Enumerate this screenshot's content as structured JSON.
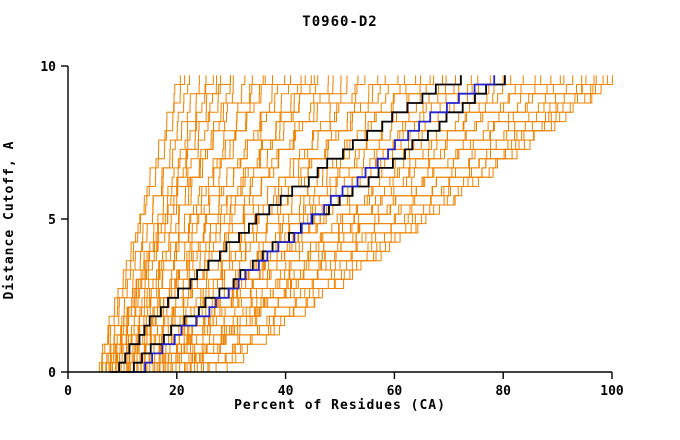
{
  "chart_data": {
    "type": "line",
    "title": "T0960-D2",
    "xlabel": "Percent of Residues (CA)",
    "ylabel": "Distance Cutoff, A",
    "xlim": [
      0,
      100
    ],
    "ylim": [
      0,
      10
    ],
    "x_ticks": [
      0,
      20,
      40,
      60,
      80,
      100
    ],
    "x_tick_labels": [
      "0",
      "20",
      "40",
      "60",
      "80",
      "100"
    ],
    "y_ticks": [
      0,
      5,
      10
    ],
    "y_tick_labels": [
      "0",
      "5",
      "10"
    ],
    "curve_top_y": 9.7,
    "grid": false,
    "legend": "none",
    "colors": {
      "ensemble_orange": "#ef8200",
      "highlight_black": "#000000",
      "highlight_blue": "#2323cc",
      "axis": "#000000",
      "background": "#ffffff"
    },
    "highlight_series": [
      {
        "name": "black-model-1",
        "color": "#000000",
        "points": [
          [
            8,
            0
          ],
          [
            10,
            0.5
          ],
          [
            12,
            1
          ],
          [
            14,
            1.5
          ],
          [
            16,
            2
          ],
          [
            19,
            2.5
          ],
          [
            22,
            3
          ],
          [
            25,
            3.5
          ],
          [
            28,
            4
          ],
          [
            31,
            4.5
          ],
          [
            34,
            5
          ],
          [
            37,
            5.5
          ],
          [
            41,
            6
          ],
          [
            45,
            6.5
          ],
          [
            48,
            7
          ],
          [
            52,
            7.5
          ],
          [
            56,
            8
          ],
          [
            60,
            8.5
          ],
          [
            64,
            9
          ],
          [
            69,
            9.5
          ],
          [
            72,
            9.7
          ]
        ]
      },
      {
        "name": "black-model-2",
        "color": "#000000",
        "points": [
          [
            10,
            0
          ],
          [
            13,
            0.5
          ],
          [
            16,
            1
          ],
          [
            19,
            1.5
          ],
          [
            23,
            2
          ],
          [
            26,
            2.5
          ],
          [
            30,
            3
          ],
          [
            33,
            3.5
          ],
          [
            36,
            4
          ],
          [
            40,
            4.5
          ],
          [
            44,
            5
          ],
          [
            48,
            5.5
          ],
          [
            52,
            6
          ],
          [
            56,
            6.5
          ],
          [
            60,
            7
          ],
          [
            63,
            7.5
          ],
          [
            67,
            8
          ],
          [
            70,
            8.5
          ],
          [
            74,
            9
          ],
          [
            78,
            9.5
          ],
          [
            80,
            9.7
          ]
        ]
      },
      {
        "name": "blue-model",
        "color": "#2323cc",
        "points": [
          [
            12,
            0
          ],
          [
            15,
            0.5
          ],
          [
            18,
            1
          ],
          [
            21,
            1.5
          ],
          [
            25,
            2
          ],
          [
            28,
            2.5
          ],
          [
            31,
            3
          ],
          [
            34,
            3.5
          ],
          [
            37,
            4
          ],
          [
            41,
            4.5
          ],
          [
            44,
            5
          ],
          [
            47,
            5.5
          ],
          [
            50,
            6
          ],
          [
            54,
            6.5
          ],
          [
            57,
            7
          ],
          [
            60,
            7.5
          ],
          [
            63,
            8
          ],
          [
            67,
            8.5
          ],
          [
            71,
            9
          ],
          [
            76,
            9.5
          ],
          [
            78,
            9.7
          ]
        ]
      }
    ],
    "ensemble_series": [
      {
        "x0": 5,
        "x1": 20,
        "p": 1.0
      },
      {
        "x0": 6,
        "x1": 22,
        "p": 0.92
      },
      {
        "x0": 5.5,
        "x1": 24,
        "p": 1.1
      },
      {
        "x0": 7,
        "x1": 25,
        "p": 1.0
      },
      {
        "x0": 6,
        "x1": 27,
        "p": 0.95
      },
      {
        "x0": 8,
        "x1": 28,
        "p": 1.15
      },
      {
        "x0": 7,
        "x1": 30,
        "p": 0.9
      },
      {
        "x0": 9,
        "x1": 31,
        "p": 1.05
      },
      {
        "x0": 6.5,
        "x1": 33,
        "p": 1.2
      },
      {
        "x0": 8,
        "x1": 34,
        "p": 0.95
      },
      {
        "x0": 10,
        "x1": 36,
        "p": 1.0
      },
      {
        "x0": 7,
        "x1": 37,
        "p": 1.1
      },
      {
        "x0": 9,
        "x1": 39,
        "p": 0.9
      },
      {
        "x0": 11,
        "x1": 40,
        "p": 1.05
      },
      {
        "x0": 8,
        "x1": 42,
        "p": 1.18
      },
      {
        "x0": 10,
        "x1": 43,
        "p": 0.92
      },
      {
        "x0": 12,
        "x1": 45,
        "p": 1.0
      },
      {
        "x0": 9,
        "x1": 46,
        "p": 1.12
      },
      {
        "x0": 11,
        "x1": 48,
        "p": 0.95
      },
      {
        "x0": 13,
        "x1": 49,
        "p": 1.05
      },
      {
        "x0": 10,
        "x1": 51,
        "p": 1.2
      },
      {
        "x0": 12,
        "x1": 52,
        "p": 0.9
      },
      {
        "x0": 14,
        "x1": 54,
        "p": 1.0
      },
      {
        "x0": 11,
        "x1": 55,
        "p": 1.1
      },
      {
        "x0": 13,
        "x1": 57,
        "p": 0.95
      },
      {
        "x0": 15,
        "x1": 58,
        "p": 1.04
      },
      {
        "x0": 12,
        "x1": 60,
        "p": 1.15
      },
      {
        "x0": 14,
        "x1": 61,
        "p": 0.92
      },
      {
        "x0": 16,
        "x1": 63,
        "p": 1.0
      },
      {
        "x0": 13,
        "x1": 64,
        "p": 1.08
      },
      {
        "x0": 15,
        "x1": 66,
        "p": 0.95
      },
      {
        "x0": 17,
        "x1": 67,
        "p": 1.1
      },
      {
        "x0": 14,
        "x1": 69,
        "p": 1.0
      },
      {
        "x0": 16,
        "x1": 70,
        "p": 0.9
      },
      {
        "x0": 18,
        "x1": 72,
        "p": 1.12
      },
      {
        "x0": 15,
        "x1": 73,
        "p": 1.0
      },
      {
        "x0": 17,
        "x1": 75,
        "p": 1.05
      },
      {
        "x0": 19,
        "x1": 76,
        "p": 0.93
      },
      {
        "x0": 16,
        "x1": 78,
        "p": 1.1
      },
      {
        "x0": 18,
        "x1": 80,
        "p": 1.0
      },
      {
        "x0": 20,
        "x1": 81,
        "p": 0.95
      },
      {
        "x0": 17,
        "x1": 83,
        "p": 1.08
      },
      {
        "x0": 19,
        "x1": 85,
        "p": 1.0
      },
      {
        "x0": 21,
        "x1": 86,
        "p": 1.12
      },
      {
        "x0": 18,
        "x1": 88,
        "p": 0.95
      },
      {
        "x0": 20,
        "x1": 90,
        "p": 1.02
      },
      {
        "x0": 22,
        "x1": 91,
        "p": 1.1
      },
      {
        "x0": 19,
        "x1": 93,
        "p": 0.96
      },
      {
        "x0": 21,
        "x1": 95,
        "p": 1.05
      },
      {
        "x0": 23,
        "x1": 96,
        "p": 1.0
      },
      {
        "x0": 25,
        "x1": 98,
        "p": 1.1
      },
      {
        "x0": 24,
        "x1": 100,
        "p": 0.95
      },
      {
        "x0": 26,
        "x1": 99,
        "p": 1.05
      },
      {
        "x0": 22,
        "x1": 97,
        "p": 0.9
      },
      {
        "x0": 27,
        "x1": 100,
        "p": 1.0
      },
      {
        "x0": 5,
        "x1": 21,
        "p": 1.05
      },
      {
        "x0": 6.5,
        "x1": 26,
        "p": 1.0
      },
      {
        "x0": 7.5,
        "x1": 29,
        "p": 1.08
      },
      {
        "x0": 8.5,
        "x1": 35,
        "p": 0.97
      },
      {
        "x0": 9.5,
        "x1": 44,
        "p": 1.03
      }
    ]
  }
}
